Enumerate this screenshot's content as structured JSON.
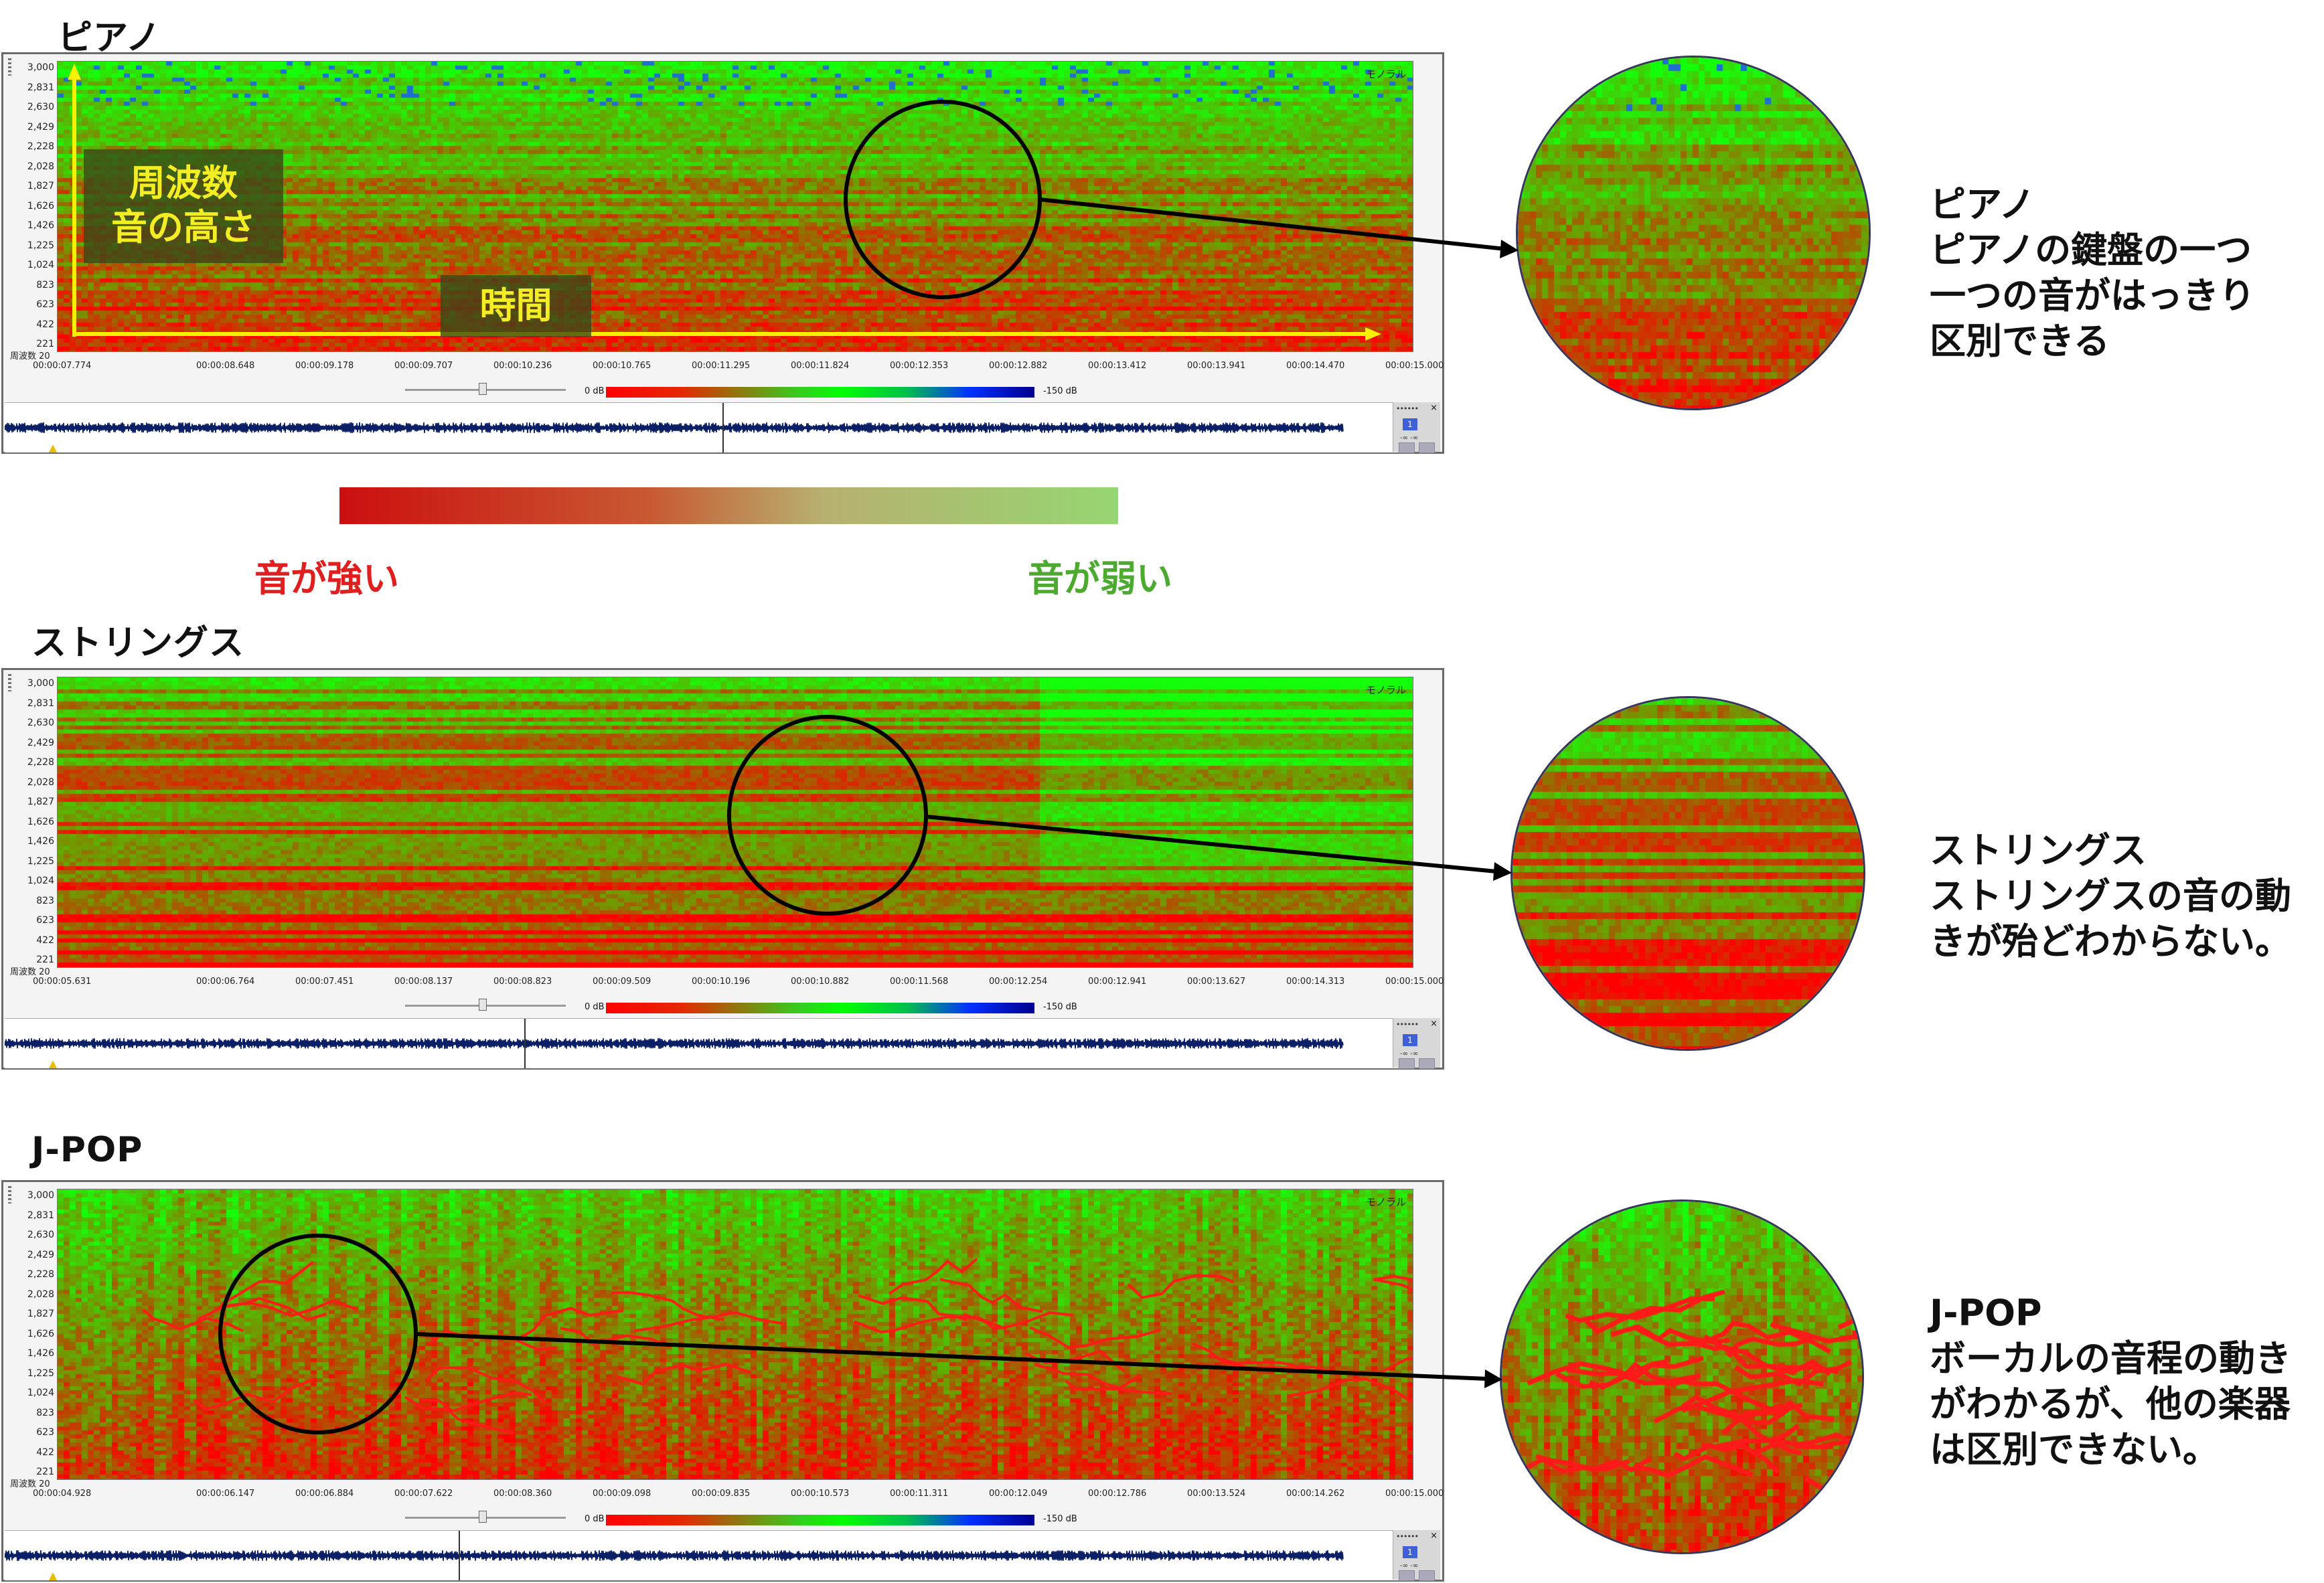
{
  "sections": [
    {
      "title": "ピアノ",
      "ylabels": [
        "3,000",
        "2,831",
        "2,630",
        "2,429",
        "2,228",
        "2,028",
        "1,827",
        "1,626",
        "1,426",
        "1,225",
        "1,024",
        "823",
        "623",
        "422",
        "221"
      ],
      "yaxis_name": "周波数 20",
      "mono_label": "モノラル",
      "time_start": "00:00:07.774",
      "time_ticks": [
        "00:00:08.648",
        "00:00:09.178",
        "00:00:09.707",
        "00:00:10.236",
        "00:00:10.765",
        "00:00:11.295",
        "00:00:11.824",
        "00:00:12.353",
        "00:00:12.882",
        "00:00:13.412",
        "00:00:13.941",
        "00:00:14.470",
        "00:00:15.000"
      ],
      "db_high": "0 dB",
      "db_low": "-150 dB",
      "side_button": "1",
      "side_db": "-∞   -∞",
      "side_dots": "••••••",
      "side_close": "×",
      "desc_lines": [
        "ピアノ",
        "ピアノの鍵盤の一つ",
        "一つの音がはっきり",
        "区別できる"
      ]
    },
    {
      "title": "ストリングス",
      "ylabels": [
        "3,000",
        "2,831",
        "2,630",
        "2,429",
        "2,228",
        "2,028",
        "1,827",
        "1,626",
        "1,426",
        "1,225",
        "1,024",
        "823",
        "623",
        "422",
        "221"
      ],
      "yaxis_name": "周波数 20",
      "mono_label": "モノラル",
      "time_start": "00:00:05.631",
      "time_ticks": [
        "00:00:06.764",
        "00:00:07.451",
        "00:00:08.137",
        "00:00:08.823",
        "00:00:09.509",
        "00:00:10.196",
        "00:00:10.882",
        "00:00:11.568",
        "00:00:12.254",
        "00:00:12.941",
        "00:00:13.627",
        "00:00:14.313",
        "00:00:15.000"
      ],
      "db_high": "0 dB",
      "db_low": "-150 dB",
      "side_button": "1",
      "side_db": "-∞   -∞",
      "side_dots": "••••••",
      "side_close": "×",
      "desc_lines": [
        "ストリングス",
        "ストリングスの音の動",
        "きが殆どわからない。"
      ]
    },
    {
      "title": "J-POP",
      "ylabels": [
        "3,000",
        "2,831",
        "2,630",
        "2,429",
        "2,228",
        "2,028",
        "1,827",
        "1,626",
        "1,426",
        "1,225",
        "1,024",
        "823",
        "623",
        "422",
        "221"
      ],
      "yaxis_name": "周波数 20",
      "mono_label": "モノラル",
      "time_start": "00:00:04.928",
      "time_ticks": [
        "00:00:06.147",
        "00:00:06.884",
        "00:00:07.622",
        "00:00:08.360",
        "00:00:09.098",
        "00:00:09.835",
        "00:00:10.573",
        "00:00:11.311",
        "00:00:12.049",
        "00:00:12.786",
        "00:00:13.524",
        "00:00:14.262",
        "00:00:15.000"
      ],
      "db_high": "0 dB",
      "db_low": "-150 dB",
      "side_button": "1",
      "side_db": "-∞   -∞",
      "side_dots": "••••••",
      "side_close": "×",
      "desc_lines": [
        "J-POP",
        "ボーカルの音程の動き",
        "がわかるが、他の楽器",
        "は区別できない。"
      ]
    }
  ],
  "overlay": {
    "freq_line1": "周波数",
    "freq_line2": "音の高さ",
    "time": "時間"
  },
  "legend": {
    "strong": "音が強い",
    "weak": "音が弱い"
  },
  "colors": {
    "intense": "#ff0000",
    "weak": "#00ff00",
    "axis_arrow": "#f7f000",
    "legend_strong_text": "#e02020",
    "legend_weak_text": "#4caa2f"
  }
}
